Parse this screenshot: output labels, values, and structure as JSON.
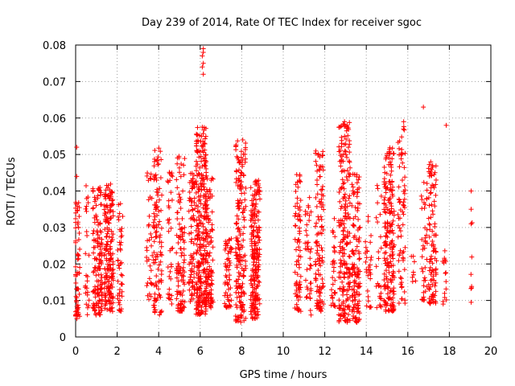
{
  "chart_data": {
    "type": "scatter",
    "title": "Day 239 of 2014, Rate Of TEC Index for receiver sgoc",
    "xlabel": "GPS time / hours",
    "ylabel": "ROTI / TECUs",
    "xlim": [
      0,
      20
    ],
    "ylim": [
      0,
      0.08
    ],
    "xticks": [
      "0",
      "2",
      "4",
      "6",
      "8",
      "10",
      "12",
      "14",
      "16",
      "18",
      "20"
    ],
    "yticks": [
      "0",
      "0.01",
      "0.02",
      "0.03",
      "0.04",
      "0.05",
      "0.06",
      "0.07",
      "0.08"
    ],
    "grid": true,
    "marker": "+",
    "color": "#ff0000",
    "clusters": [
      {
        "x": 0.05,
        "width": 0.3,
        "ymin": 0.005,
        "ymax": 0.037,
        "n": 60
      },
      {
        "x": 0.55,
        "width": 0.2,
        "ymin": 0.006,
        "ymax": 0.042,
        "n": 25
      },
      {
        "x": 1.05,
        "width": 0.45,
        "ymin": 0.006,
        "ymax": 0.041,
        "n": 140
      },
      {
        "x": 1.6,
        "width": 0.45,
        "ymin": 0.007,
        "ymax": 0.042,
        "n": 180
      },
      {
        "x": 2.15,
        "width": 0.25,
        "ymin": 0.007,
        "ymax": 0.039,
        "n": 45
      },
      {
        "x": 3.55,
        "width": 0.3,
        "ymin": 0.01,
        "ymax": 0.045,
        "n": 35
      },
      {
        "x": 3.95,
        "width": 0.4,
        "ymin": 0.006,
        "ymax": 0.052,
        "n": 110
      },
      {
        "x": 4.55,
        "width": 0.25,
        "ymin": 0.009,
        "ymax": 0.046,
        "n": 35
      },
      {
        "x": 5.05,
        "width": 0.4,
        "ymin": 0.007,
        "ymax": 0.05,
        "n": 110
      },
      {
        "x": 5.6,
        "width": 0.3,
        "ymin": 0.008,
        "ymax": 0.046,
        "n": 80
      },
      {
        "x": 6.05,
        "width": 0.5,
        "ymin": 0.006,
        "ymax": 0.058,
        "n": 280
      },
      {
        "x": 6.45,
        "width": 0.35,
        "ymin": 0.008,
        "ymax": 0.044,
        "n": 100
      },
      {
        "x": 7.35,
        "width": 0.35,
        "ymin": 0.008,
        "ymax": 0.028,
        "n": 60
      },
      {
        "x": 7.95,
        "width": 0.5,
        "ymin": 0.004,
        "ymax": 0.054,
        "n": 180
      },
      {
        "x": 8.65,
        "width": 0.45,
        "ymin": 0.005,
        "ymax": 0.043,
        "n": 200
      },
      {
        "x": 10.7,
        "width": 0.3,
        "ymin": 0.007,
        "ymax": 0.045,
        "n": 80
      },
      {
        "x": 11.2,
        "width": 0.3,
        "ymin": 0.006,
        "ymax": 0.039,
        "n": 40
      },
      {
        "x": 11.75,
        "width": 0.4,
        "ymin": 0.007,
        "ymax": 0.051,
        "n": 110
      },
      {
        "x": 12.4,
        "width": 0.2,
        "ymin": 0.008,
        "ymax": 0.037,
        "n": 30
      },
      {
        "x": 12.95,
        "width": 0.55,
        "ymin": 0.004,
        "ymax": 0.059,
        "n": 220
      },
      {
        "x": 13.5,
        "width": 0.4,
        "ymin": 0.004,
        "ymax": 0.045,
        "n": 130
      },
      {
        "x": 14.1,
        "width": 0.3,
        "ymin": 0.008,
        "ymax": 0.034,
        "n": 30
      },
      {
        "x": 14.6,
        "width": 0.25,
        "ymin": 0.008,
        "ymax": 0.043,
        "n": 25
      },
      {
        "x": 15.1,
        "width": 0.5,
        "ymin": 0.007,
        "ymax": 0.052,
        "n": 200
      },
      {
        "x": 15.7,
        "width": 0.35,
        "ymin": 0.009,
        "ymax": 0.059,
        "n": 70
      },
      {
        "x": 16.3,
        "width": 0.3,
        "ymin": 0.014,
        "ymax": 0.023,
        "n": 8
      },
      {
        "x": 16.8,
        "width": 0.3,
        "ymin": 0.01,
        "ymax": 0.043,
        "n": 40
      },
      {
        "x": 17.2,
        "width": 0.4,
        "ymin": 0.009,
        "ymax": 0.048,
        "n": 100
      },
      {
        "x": 17.75,
        "width": 0.25,
        "ymin": 0.009,
        "ymax": 0.025,
        "n": 15
      },
      {
        "x": 19.05,
        "width": 0.15,
        "ymin": 0.009,
        "ymax": 0.04,
        "n": 6
      }
    ],
    "outliers": [
      {
        "x": 0.05,
        "y": 0.052
      },
      {
        "x": 0.05,
        "y": 0.044
      },
      {
        "x": 6.15,
        "y": 0.079
      },
      {
        "x": 6.15,
        "y": 0.078
      },
      {
        "x": 6.1,
        "y": 0.077
      },
      {
        "x": 6.15,
        "y": 0.075
      },
      {
        "x": 6.1,
        "y": 0.074
      },
      {
        "x": 6.15,
        "y": 0.072
      },
      {
        "x": 6.1,
        "y": 0.0575
      },
      {
        "x": 8.05,
        "y": 0.054
      },
      {
        "x": 12.95,
        "y": 0.059
      },
      {
        "x": 15.8,
        "y": 0.059
      },
      {
        "x": 16.75,
        "y": 0.063
      },
      {
        "x": 17.85,
        "y": 0.058
      },
      {
        "x": 19.05,
        "y": 0.04
      },
      {
        "x": 19.05,
        "y": 0.035
      },
      {
        "x": 19.05,
        "y": 0.031
      },
      {
        "x": 19.05,
        "y": 0.0095
      }
    ]
  }
}
